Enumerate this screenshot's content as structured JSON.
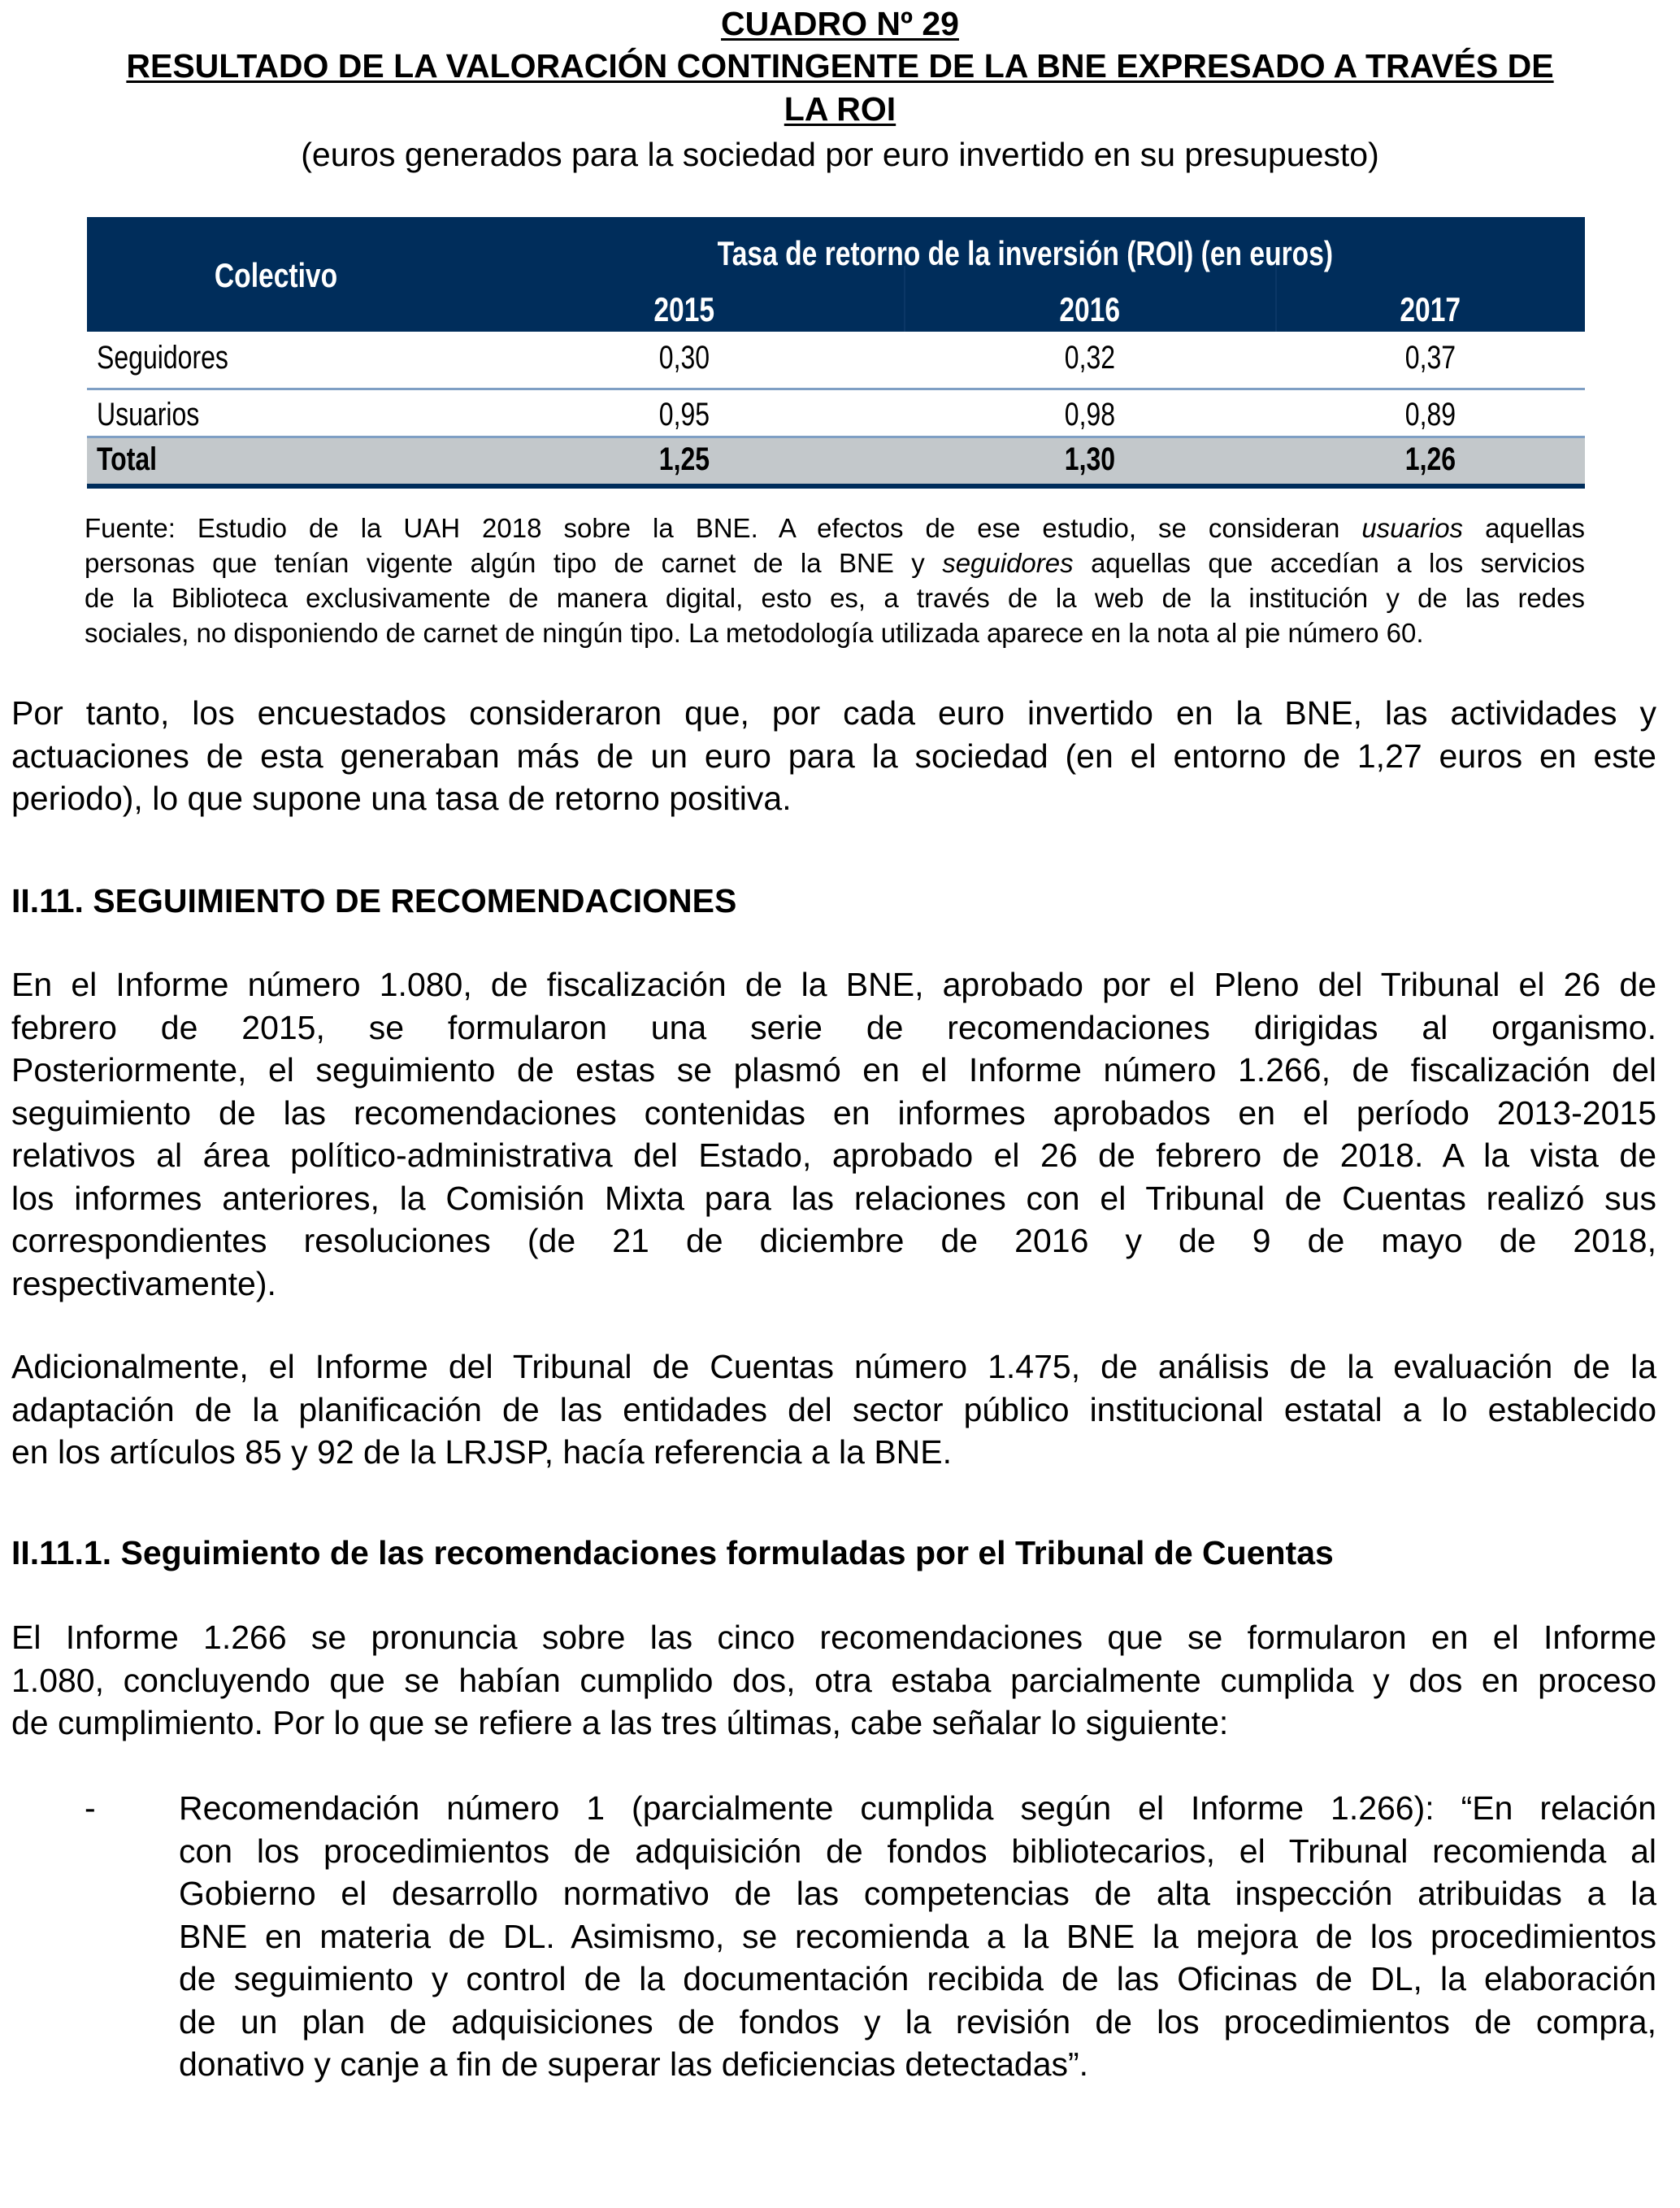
{
  "title": {
    "line1": "CUADRO Nº 29",
    "line2": "RESULTADO DE LA VALORACIÓN CONTINGENTE DE LA BNE EXPRESADO A TRAVÉS DE",
    "line3": "LA ROI",
    "subtitle": "(euros generados para la sociedad por euro invertido en su presupuesto)"
  },
  "table": {
    "col_header": "Colectivo",
    "group_header": "Tasa de retorno de la inversión (ROI) (en euros)",
    "years": [
      "2015",
      "2016",
      "2017"
    ],
    "rows": [
      {
        "label": "Seguidores",
        "values": [
          "0,30",
          "0,32",
          "0,37"
        ]
      },
      {
        "label": "Usuarios",
        "values": [
          "0,95",
          "0,98",
          "0,89"
        ]
      },
      {
        "label": "Total",
        "values": [
          "1,25",
          "1,30",
          "1,26"
        ]
      }
    ],
    "colors": {
      "header_bg": "#002d5b",
      "total_bg": "#c3c8cb",
      "row_rule": "#7f9fc4"
    }
  },
  "footnote": {
    "lines": [
      [
        "Fuente: Estudio de la UAH 2018 sobre la BNE. A efectos de ese estudio, se consideran ",
        "usuarios",
        " aquellas"
      ],
      [
        "personas que tenían vigente algún tipo de carnet de la BNE y ",
        "seguidores",
        " aquellas que accedían a los servicios"
      ],
      [
        "de la Biblioteca exclusivamente de manera digital, esto es, a través de la web de la institución y de las redes",
        "",
        ""
      ],
      [
        "sociales, no disponiendo de carnet de ningún tipo. La metodología utilizada aparece en la nota al pie número 60.",
        "",
        ""
      ]
    ]
  },
  "paragraphs": {
    "p1": [
      "Por tanto, los encuestados consideraron que, por cada euro invertido en la BNE, las actividades y",
      "actuaciones de esta generaban más de un euro para la sociedad (en el entorno de 1,27 euros en este",
      "periodo), lo que supone una tasa de retorno positiva."
    ],
    "h1": "II.11.  SEGUIMIENTO DE RECOMENDACIONES",
    "p2": [
      "En el Informe número 1.080, de fiscalización de la BNE, aprobado por el Pleno del Tribunal el 26 de",
      "febrero de 2015, se formularon una serie de recomendaciones dirigidas al organismo.",
      "Posteriormente, el seguimiento de estas se plasmó en el Informe número 1.266, de fiscalización del",
      "seguimiento de las recomendaciones contenidas en informes aprobados en el período 2013-2015",
      "relativos al área político-administrativa del Estado, aprobado el 26 de febrero de 2018. A la vista de",
      "los informes anteriores, la Comisión Mixta para las relaciones con el Tribunal de Cuentas realizó sus",
      "correspondientes resoluciones (de 21 de diciembre de 2016 y de 9 de mayo de 2018,",
      "respectivamente)."
    ],
    "p3": [
      "Adicionalmente, el Informe del Tribunal de Cuentas número 1.475, de análisis de la evaluación de la",
      "adaptación de la planificación de las entidades del sector público institucional estatal a lo establecido",
      "en los artículos 85 y 92 de la LRJSP, hacía referencia a la BNE."
    ],
    "h2": "II.11.1. Seguimiento de las recomendaciones formuladas por el Tribunal de Cuentas",
    "p4": [
      "El Informe 1.266 se pronuncia sobre las cinco recomendaciones que se formularon en el Informe",
      "1.080, concluyendo que se habían cumplido dos, otra estaba parcialmente cumplida y dos en proceso",
      "de cumplimiento. Por lo que se refiere a las tres últimas, cabe señalar lo siguiente:"
    ],
    "bullet_marker": "-",
    "bullet": [
      "Recomendación número 1 (parcialmente cumplida según el Informe 1.266): “En relación",
      "con los procedimientos de adquisición de fondos bibliotecarios, el Tribunal recomienda al",
      "Gobierno el desarrollo normativo de las competencias de alta inspección atribuidas a la",
      "BNE en materia de DL. Asimismo, se recomienda a la BNE la mejora de los procedimientos",
      "de seguimiento y control de la documentación recibida de las Oficinas de DL, la elaboración",
      "de un plan de adquisiciones de fondos y la revisión de los procedimientos de compra,",
      "donativo y canje a fin de superar las deficiencias detectadas”."
    ]
  }
}
